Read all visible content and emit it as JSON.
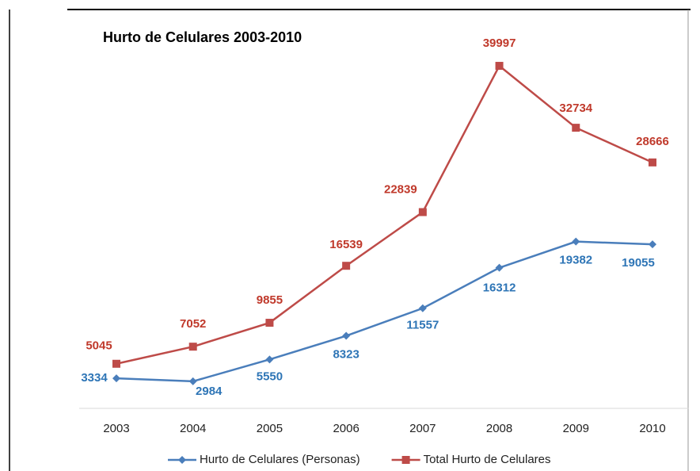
{
  "chart_data": {
    "type": "line",
    "title": "Hurto de Celulares 2003-2010",
    "categories": [
      "2003",
      "2004",
      "2005",
      "2006",
      "2007",
      "2008",
      "2009",
      "2010"
    ],
    "series": [
      {
        "name": "Hurto de Celulares (Personas)",
        "color": "#4a7ebb",
        "label_color": "#2e75b6",
        "values": [
          3334,
          2984,
          5550,
          8323,
          11557,
          16312,
          19382,
          19055
        ]
      },
      {
        "name": "Total Hurto de Celulares",
        "color": "#be4b48",
        "label_color": "#c0392b",
        "values": [
          5045,
          7052,
          9855,
          16539,
          22839,
          39997,
          32734,
          28666
        ]
      }
    ],
    "ylim": [
      0,
      40000
    ],
    "legend": "bottom"
  }
}
